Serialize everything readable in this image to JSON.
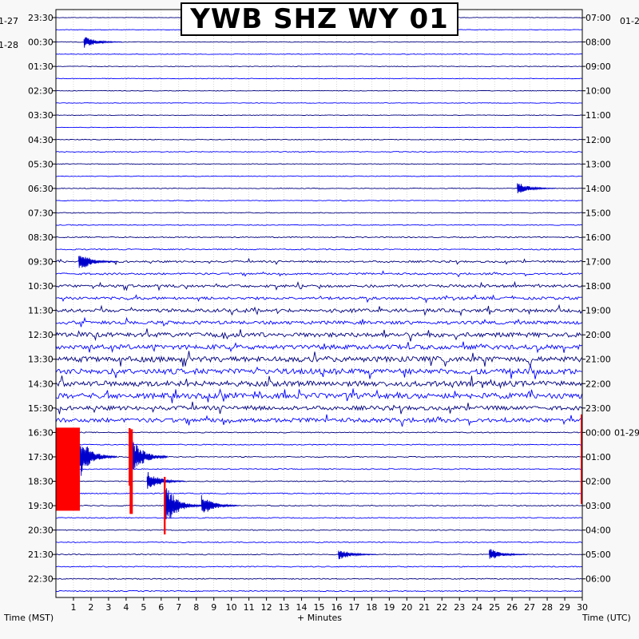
{
  "chart_data": {
    "type": "helicorder",
    "title": "YWB SHZ WY 01",
    "xlabel": "+ Minutes",
    "x_ticks": [
      "1",
      "2",
      "3",
      "4",
      "5",
      "6",
      "7",
      "8",
      "9",
      "10",
      "11",
      "12",
      "13",
      "14",
      "15",
      "16",
      "17",
      "18",
      "19",
      "20",
      "21",
      "22",
      "23",
      "24",
      "25",
      "26",
      "27",
      "28",
      "29",
      "30"
    ],
    "xlim": [
      0,
      30
    ],
    "left_axis_title": "Time (MST)",
    "right_axis_title": "Time (UTC)",
    "left_dates": [
      "1-27",
      "1-28"
    ],
    "right_dates": [
      "01-2",
      "01-29"
    ],
    "left_times": [
      "23:30",
      "00:30",
      "01:30",
      "02:30",
      "03:30",
      "04:30",
      "05:30",
      "06:30",
      "07:30",
      "08:30",
      "09:30",
      "10:30",
      "11:30",
      "12:30",
      "13:30",
      "14:30",
      "15:30",
      "16:30",
      "17:30",
      "18:30",
      "19:30",
      "20:30",
      "21:30",
      "22:30"
    ],
    "right_times": [
      "07:00",
      "08:00",
      "09:00",
      "10:00",
      "11:00",
      "12:00",
      "13:00",
      "14:00",
      "15:00",
      "16:00",
      "17:00",
      "18:00",
      "19:00",
      "20:00",
      "21:00",
      "22:00",
      "23:00",
      "00:00",
      "01:00",
      "02:00",
      "03:00",
      "04:00",
      "05:00",
      "06:00"
    ],
    "trace_lines_per_hour": 2,
    "trace_colors": [
      "#000080",
      "#0000ff"
    ],
    "clip_color": "#ff0000",
    "grid": true,
    "events": [
      {
        "hour_index": 1,
        "minute": 1.6,
        "size": "small"
      },
      {
        "hour_index": 7,
        "minute": 26.3,
        "size": "small"
      },
      {
        "hour_index": 10,
        "minute": 1.3,
        "size": "medium"
      },
      {
        "hour_index": 18,
        "minute": 1.3,
        "size": "large"
      },
      {
        "hour_index": 18,
        "minute": 4.2,
        "size": "large"
      },
      {
        "hour_index": 19,
        "minute": 5.2,
        "size": "medium"
      },
      {
        "hour_index": 20,
        "minute": 6.2,
        "size": "large"
      },
      {
        "hour_index": 20,
        "minute": 8.3,
        "size": "medium"
      },
      {
        "hour_index": 22,
        "minute": 16.1,
        "size": "small"
      },
      {
        "hour_index": 22,
        "minute": 24.7,
        "size": "small"
      }
    ]
  }
}
